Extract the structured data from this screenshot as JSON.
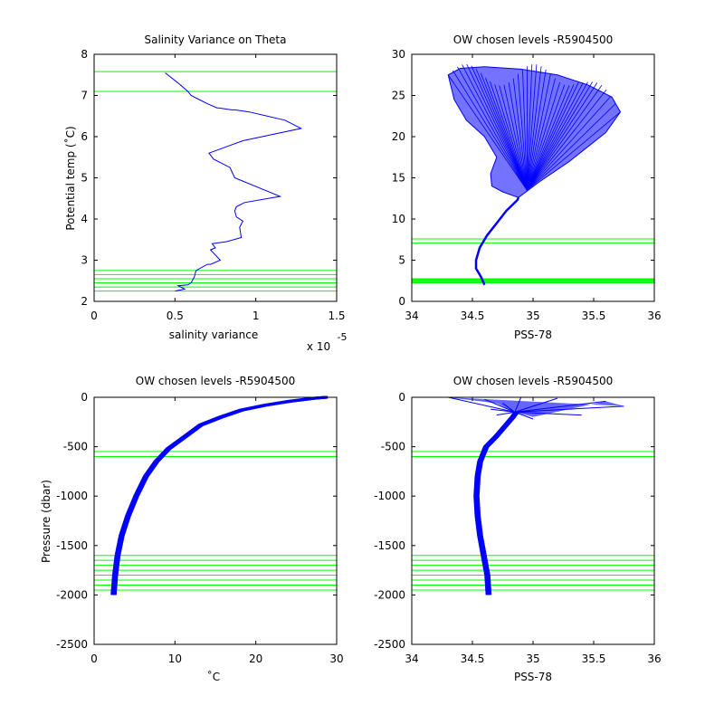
{
  "chart_data": [
    {
      "type": "line",
      "title": "Salinity Variance on Theta",
      "xlabel": "salinity variance",
      "ylabel": "Potential temp (˚C)",
      "x_exponent_label": "x 10",
      "x_exponent": "-5",
      "xlim": [
        0,
        1.5
      ],
      "ylim": [
        2,
        8
      ],
      "xticks": [
        0,
        0.5,
        1,
        1.5
      ],
      "xtick_labels": [
        "0",
        "0.5",
        "1",
        "1.5"
      ],
      "yticks": [
        2,
        3,
        4,
        5,
        6,
        7,
        8
      ],
      "ytick_labels": [
        "2",
        "3",
        "4",
        "5",
        "6",
        "7",
        "8"
      ],
      "grid": false,
      "series": [
        {
          "color": "#0000ff",
          "x": [
            0.44,
            0.52,
            0.58,
            0.6,
            0.65,
            0.7,
            0.76,
            0.77,
            0.85,
            0.87,
            0.96,
            1.18,
            1.28,
            0.92,
            0.71,
            0.74,
            0.84,
            0.87,
            1.15,
            0.93,
            0.88,
            0.87,
            0.88,
            0.92,
            0.9,
            0.91,
            0.82,
            0.73,
            0.75,
            0.72,
            0.78,
            0.72,
            0.7,
            0.63,
            0.62,
            0.6,
            0.58,
            0.52,
            0.56,
            0.5
          ],
          "y": [
            7.55,
            7.3,
            7.1,
            7.0,
            6.9,
            6.8,
            6.7,
            6.7,
            6.65,
            6.65,
            6.6,
            6.4,
            6.2,
            5.9,
            5.6,
            5.45,
            5.25,
            5.0,
            4.55,
            4.4,
            4.3,
            4.2,
            4.05,
            3.95,
            3.8,
            3.55,
            3.45,
            3.4,
            3.3,
            3.25,
            3.0,
            2.9,
            2.9,
            2.75,
            2.6,
            2.45,
            2.4,
            2.38,
            2.3,
            2.25
          ]
        }
      ],
      "hlines": {
        "color": "#00ff00",
        "values": [
          7.58,
          7.1,
          2.75,
          2.65,
          2.55,
          2.45,
          2.35,
          2.25
        ]
      }
    },
    {
      "type": "line",
      "title": "OW chosen levels -R5904500",
      "xlabel": "PSS-78",
      "ylabel": "",
      "xlim": [
        34,
        36
      ],
      "ylim": [
        0,
        30
      ],
      "xticks": [
        34,
        34.5,
        35,
        35.5,
        36
      ],
      "xtick_labels": [
        "34",
        "34.5",
        "35",
        "35.5",
        "36"
      ],
      "yticks": [
        0,
        5,
        10,
        15,
        20,
        25,
        30
      ],
      "ytick_labels": [
        "0",
        "5",
        "10",
        "15",
        "20",
        "25",
        "30"
      ],
      "grid": false,
      "profile_spine": {
        "color": "#0000ff",
        "x": [
          34.6,
          34.57,
          34.53,
          34.53,
          34.56,
          34.62,
          34.7,
          34.78,
          34.87,
          34.88
        ],
        "y": [
          2.0,
          3.0,
          4.0,
          5.0,
          6.5,
          8.0,
          9.5,
          11.0,
          12.3,
          12.6
        ]
      },
      "cloud_outline": {
        "color": "#0000ff",
        "x": [
          34.88,
          34.75,
          34.66,
          34.65,
          34.7,
          34.6,
          34.45,
          34.35,
          34.3,
          34.4,
          34.6,
          34.9,
          35.2,
          35.45,
          35.65,
          35.72,
          35.6,
          35.3,
          35.05,
          34.88
        ],
        "y": [
          12.6,
          13.3,
          14.0,
          15.5,
          17.5,
          20.0,
          22.0,
          24.5,
          27.5,
          28.3,
          28.5,
          28.2,
          27.5,
          26.3,
          24.8,
          23.0,
          20.5,
          17.0,
          14.5,
          12.6
        ]
      },
      "hlines": {
        "color": "#00ff00",
        "values": [
          7.58,
          7.1,
          2.75,
          2.65,
          2.55,
          2.45,
          2.35,
          2.25
        ]
      }
    },
    {
      "type": "line",
      "title": "OW chosen levels -R5904500",
      "xlabel": "˚C",
      "ylabel": "Pressure (dbar)",
      "xlim": [
        0,
        30
      ],
      "ylim": [
        -2500,
        0
      ],
      "xticks": [
        0,
        10,
        20,
        30
      ],
      "xtick_labels": [
        "0",
        "10",
        "20",
        "30"
      ],
      "yticks": [
        -2500,
        -2000,
        -1500,
        -1000,
        -500,
        0
      ],
      "ytick_labels": [
        "-2500",
        "-2000",
        "-1500",
        "-1000",
        "-500",
        "0"
      ],
      "grid": false,
      "profile_band": {
        "color": "#0000ff",
        "x": [
          2.2,
          2.4,
          2.7,
          3.2,
          4.0,
          5.0,
          6.2,
          7.5,
          9.0,
          11.0,
          13.0,
          15.5,
          18.0,
          21.0,
          24.0,
          27.0,
          28.5
        ],
        "y": [
          -2000,
          -1800,
          -1600,
          -1400,
          -1200,
          -1000,
          -800,
          -650,
          -520,
          -400,
          -280,
          -200,
          -130,
          -80,
          -40,
          -10,
          0
        ]
      },
      "hlines": {
        "color": "#00ff00",
        "values": [
          -550,
          -600,
          -1600,
          -1650,
          -1700,
          -1750,
          -1800,
          -1850,
          -1900,
          -1950
        ]
      }
    },
    {
      "type": "line",
      "title": "OW chosen levels -R5904500",
      "xlabel": "PSS-78",
      "ylabel": "",
      "xlim": [
        34,
        36
      ],
      "ylim": [
        -2500,
        0
      ],
      "xticks": [
        34,
        34.5,
        35,
        35.5,
        36
      ],
      "xtick_labels": [
        "34",
        "34.5",
        "35",
        "35.5",
        "36"
      ],
      "yticks": [
        -2500,
        -2000,
        -1500,
        -1000,
        -500,
        0
      ],
      "ytick_labels": [
        "-2500",
        "-2000",
        "-1500",
        "-1000",
        "-500",
        "0"
      ],
      "grid": false,
      "profile_band": {
        "color": "#0000ff",
        "x": [
          34.62,
          34.61,
          34.58,
          34.55,
          34.53,
          34.52,
          34.53,
          34.55,
          34.6,
          34.68,
          34.75,
          34.82,
          34.85
        ],
        "y": [
          -2000,
          -1800,
          -1600,
          -1400,
          -1200,
          -1000,
          -800,
          -650,
          -500,
          -400,
          -300,
          -200,
          -150
        ]
      },
      "surface_cloud": {
        "color": "#0000ff",
        "x": [
          34.3,
          34.6,
          34.75,
          34.65,
          34.7,
          35.0,
          35.4,
          35.75,
          35.6,
          35.2,
          34.9,
          34.85
        ],
        "y": [
          0,
          -20,
          -60,
          -120,
          -180,
          -220,
          -180,
          -90,
          -40,
          -10,
          0,
          -150
        ]
      },
      "hlines": {
        "color": "#00ff00",
        "values": [
          -550,
          -600,
          -1600,
          -1650,
          -1700,
          -1750,
          -1800,
          -1850,
          -1900,
          -1950
        ]
      }
    }
  ]
}
